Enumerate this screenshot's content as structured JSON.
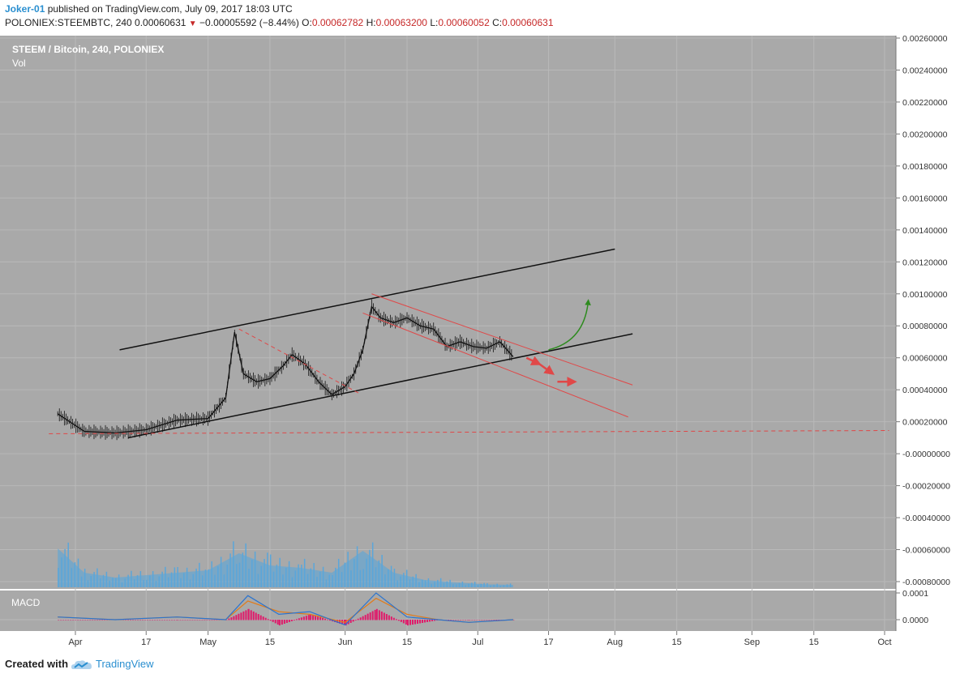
{
  "header": {
    "author": "Joker-01",
    "published_text": "published on TradingView.com, July 09, 2017 18:03 UTC",
    "symbol_line": "POLONIEX:STEEMBTC, 240  0.00060631",
    "change": "−0.00005592 (−8.44%)",
    "o_label": "O:",
    "o_value": "0.00062782",
    "h_label": "H:",
    "h_value": "0.00063200",
    "l_label": "L:",
    "l_value": "0.00060052",
    "c_label": "C:",
    "c_value": "0.00060631",
    "down_glyph": "▼"
  },
  "main_pane": {
    "title": "STEEM / Bitcoin, 240, POLONIEX",
    "sub_label": "Vol"
  },
  "macd_pane": {
    "label": "MACD"
  },
  "footer": {
    "created_text": "Created with",
    "brand": "TradingView"
  },
  "colors": {
    "background": "#a9a9a9",
    "grid": "#b9b9b9",
    "price": "#111111",
    "volume": "#5aa6da",
    "volume_spike": "#6dbb6d",
    "trend_black": "#111111",
    "trend_red": "#e04848",
    "arrow_green": "#2e8b1f",
    "macd_line": "#2a74d0",
    "signal_line": "#e07b1a",
    "histogram": "#e01a6a"
  },
  "chart_data": [
    {
      "type": "line",
      "name": "STEEMBTC price",
      "title": "STEEM / Bitcoin, 240, POLONIEX",
      "x_tick_labels": [
        "Apr",
        "17",
        "May",
        "15",
        "Jun",
        "15",
        "Jul",
        "17",
        "Aug",
        "15",
        "Sep",
        "15",
        "Oct"
      ],
      "x": [
        "2017-03-28",
        "2017-04-03",
        "2017-04-10",
        "2017-04-17",
        "2017-04-24",
        "2017-05-01",
        "2017-05-05",
        "2017-05-07",
        "2017-05-09",
        "2017-05-12",
        "2017-05-15",
        "2017-05-18",
        "2017-05-20",
        "2017-05-23",
        "2017-05-26",
        "2017-05-29",
        "2017-06-01",
        "2017-06-03",
        "2017-06-05",
        "2017-06-07",
        "2017-06-09",
        "2017-06-12",
        "2017-06-15",
        "2017-06-18",
        "2017-06-21",
        "2017-06-24",
        "2017-06-27",
        "2017-06-30",
        "2017-07-03",
        "2017-07-06",
        "2017-07-09"
      ],
      "values": [
        0.00025,
        0.00014,
        0.00013,
        0.00015,
        0.00021,
        0.00022,
        0.00035,
        0.00076,
        0.0005,
        0.00045,
        0.00047,
        0.00055,
        0.00062,
        0.00056,
        0.00045,
        0.00037,
        0.00042,
        0.0005,
        0.00065,
        0.00092,
        0.00085,
        0.00082,
        0.00085,
        0.0008,
        0.00078,
        0.00067,
        0.0007,
        0.00067,
        0.00066,
        0.0007,
        0.00060631
      ],
      "y_tick_labels": [
        "0.00260000",
        "0.00240000",
        "0.00220000",
        "0.00200000",
        "0.00180000",
        "0.00160000",
        "0.00140000",
        "0.00120000",
        "0.00100000",
        "0.00080000",
        "0.00060000",
        "0.00040000",
        "0.00020000",
        "-0.00000000",
        "-0.00020000",
        "-0.00040000",
        "-0.00060000",
        "-0.00080000"
      ],
      "ylim": [
        -0.0008,
        0.0026
      ],
      "scale": "linear",
      "grid": true,
      "annotations": [
        {
          "kind": "trendline",
          "color": "black",
          "style": "solid",
          "from": [
            "2017-04-11",
            0.00065
          ],
          "to": [
            "2017-08-01",
            0.00128
          ]
        },
        {
          "kind": "trendline",
          "color": "black",
          "style": "solid",
          "from": [
            "2017-04-13",
            0.0001
          ],
          "to": [
            "2017-08-05",
            0.00075
          ]
        },
        {
          "kind": "trendline",
          "color": "red",
          "style": "solid",
          "from": [
            "2017-06-07",
            0.001
          ],
          "to": [
            "2017-08-05",
            0.00043
          ]
        },
        {
          "kind": "trendline",
          "color": "red",
          "style": "solid",
          "from": [
            "2017-06-05",
            0.00088
          ],
          "to": [
            "2017-08-04",
            0.00023
          ]
        },
        {
          "kind": "trendline",
          "color": "red",
          "style": "dashed",
          "from": [
            "2017-05-08",
            0.00078
          ],
          "to": [
            "2017-06-04",
            0.00038
          ]
        },
        {
          "kind": "horizontal",
          "color": "red",
          "style": "dashed",
          "from": [
            "2017-03-26",
            0.000125
          ],
          "to": [
            "2017-10-02",
            0.000145
          ]
        },
        {
          "kind": "arrow",
          "color": "green",
          "from": [
            "2017-07-17",
            0.00065
          ],
          "to": [
            "2017-07-26",
            0.00096
          ]
        },
        {
          "kind": "arrow",
          "color": "red",
          "from": [
            "2017-07-12",
            0.0006
          ],
          "to": [
            "2017-07-15",
            0.00056
          ]
        },
        {
          "kind": "arrow",
          "color": "red",
          "from": [
            "2017-07-15",
            0.00056
          ],
          "to": [
            "2017-07-18",
            0.0005
          ]
        },
        {
          "kind": "arrow",
          "color": "red",
          "from": [
            "2017-07-19",
            0.00045
          ],
          "to": [
            "2017-07-23",
            0.00045
          ]
        }
      ]
    },
    {
      "type": "bar",
      "name": "Vol",
      "x": [
        "2017-03-28",
        "2017-04-03",
        "2017-04-10",
        "2017-04-17",
        "2017-04-24",
        "2017-05-01",
        "2017-05-08",
        "2017-05-15",
        "2017-05-22",
        "2017-05-29",
        "2017-06-05",
        "2017-06-12",
        "2017-06-19",
        "2017-06-26",
        "2017-07-03",
        "2017-07-09"
      ],
      "values": [
        0.8,
        0.3,
        0.2,
        0.25,
        0.3,
        0.35,
        0.7,
        0.45,
        0.4,
        0.3,
        0.75,
        0.3,
        0.15,
        0.1,
        0.06,
        0.05
      ]
    },
    {
      "type": "line",
      "name": "MACD",
      "y_tick_labels": [
        "0.0001",
        "0.0000"
      ],
      "x": [
        "2017-03-28",
        "2017-04-10",
        "2017-04-24",
        "2017-05-05",
        "2017-05-10",
        "2017-05-17",
        "2017-05-24",
        "2017-06-01",
        "2017-06-08",
        "2017-06-15",
        "2017-06-22",
        "2017-06-29",
        "2017-07-09"
      ],
      "macd": [
        1e-05,
        0.0,
        1e-05,
        0.0,
        9e-05,
        2e-05,
        3e-05,
        -2e-05,
        0.0001,
        1e-05,
        0.0,
        -1e-05,
        0.0
      ],
      "signal": [
        1e-05,
        0.0,
        1e-05,
        0.0,
        7e-05,
        3e-05,
        2e-05,
        -1e-05,
        8e-05,
        2e-05,
        0.0,
        -1e-05,
        0.0
      ]
    }
  ]
}
